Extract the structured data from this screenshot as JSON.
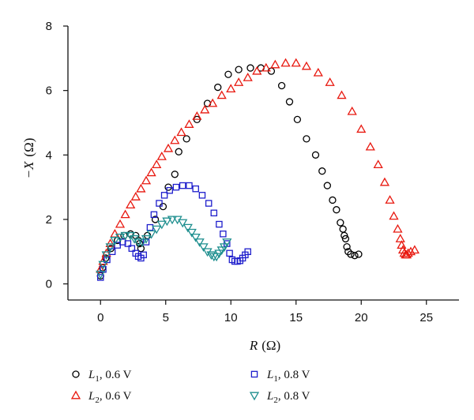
{
  "chart_data": {
    "type": "scatter",
    "title": "",
    "xlabel": {
      "symbol": "R",
      "unit": "(Ω)"
    },
    "ylabel": {
      "symbol": "−X",
      "unit": "(Ω)"
    },
    "xlim": [
      -2.5,
      27.5
    ],
    "ylim": [
      -0.5,
      8
    ],
    "xticks": [
      0,
      5,
      10,
      15,
      20,
      25
    ],
    "yticks": [
      0,
      2,
      4,
      6,
      8
    ],
    "grid": false,
    "legend_position": "bottom",
    "series": [
      {
        "name": "L1, 0.6 V",
        "name_main": "L",
        "name_sub": "1",
        "name_tail": ", 0.6 V",
        "marker": "circle",
        "color": "#000000",
        "x": [
          0.0,
          0.15,
          0.4,
          0.8,
          1.3,
          1.8,
          2.3,
          2.7,
          2.9,
          3.0,
          3.1,
          3.6,
          4.2,
          4.8,
          5.2,
          5.7,
          6.0,
          6.6,
          7.4,
          8.2,
          9.0,
          9.8,
          10.6,
          11.5,
          12.3,
          13.1,
          13.9,
          14.5,
          15.1,
          15.8,
          16.5,
          17.0,
          17.4,
          17.8,
          18.1,
          18.4,
          18.6,
          18.7,
          18.8,
          18.9,
          19.0,
          19.2,
          19.5,
          19.8
        ],
        "y": [
          0.25,
          0.5,
          0.8,
          1.1,
          1.35,
          1.5,
          1.55,
          1.5,
          1.35,
          1.25,
          1.1,
          1.5,
          2.0,
          2.4,
          3.0,
          3.4,
          4.1,
          4.5,
          5.1,
          5.6,
          6.1,
          6.5,
          6.65,
          6.7,
          6.7,
          6.6,
          6.15,
          5.65,
          5.1,
          4.5,
          4.0,
          3.5,
          3.05,
          2.6,
          2.3,
          1.9,
          1.7,
          1.5,
          1.4,
          1.15,
          1.0,
          0.92,
          0.88,
          0.92
        ]
      },
      {
        "name": "L2, 0.6 V",
        "name_main": "L",
        "name_sub": "2",
        "name_tail": ", 0.6 V",
        "marker": "triangle-up",
        "color": "#e8180f",
        "x": [
          0.0,
          0.2,
          0.45,
          0.75,
          1.1,
          1.5,
          1.9,
          2.3,
          2.7,
          3.1,
          3.5,
          3.9,
          4.3,
          4.7,
          5.2,
          5.7,
          6.2,
          6.8,
          7.4,
          8.0,
          8.6,
          9.3,
          10.0,
          10.6,
          11.3,
          12.0,
          12.7,
          13.4,
          14.2,
          15.0,
          15.8,
          16.7,
          17.6,
          18.5,
          19.3,
          20.0,
          20.7,
          21.3,
          21.8,
          22.2,
          22.5,
          22.8,
          23.0,
          23.1,
          23.2,
          23.3,
          23.4,
          23.5,
          23.6,
          23.8,
          24.1
        ],
        "y": [
          0.45,
          0.7,
          0.95,
          1.25,
          1.55,
          1.85,
          2.15,
          2.45,
          2.7,
          2.95,
          3.2,
          3.45,
          3.7,
          3.95,
          4.2,
          4.45,
          4.7,
          4.95,
          5.2,
          5.4,
          5.6,
          5.85,
          6.05,
          6.25,
          6.4,
          6.6,
          6.7,
          6.8,
          6.85,
          6.85,
          6.75,
          6.55,
          6.25,
          5.85,
          5.35,
          4.8,
          4.25,
          3.7,
          3.15,
          2.6,
          2.1,
          1.7,
          1.4,
          1.2,
          1.05,
          0.95,
          0.9,
          0.9,
          0.95,
          1.0,
          1.05
        ]
      },
      {
        "name": "L1, 0.8 V",
        "name_main": "L",
        "name_sub": "1",
        "name_tail": ", 0.8 V",
        "marker": "square",
        "color": "#1f1fcc",
        "x": [
          0.0,
          0.2,
          0.5,
          0.9,
          1.3,
          1.7,
          2.1,
          2.4,
          2.7,
          2.9,
          3.1,
          3.3,
          3.5,
          3.8,
          4.1,
          4.5,
          4.9,
          5.3,
          5.8,
          6.3,
          6.8,
          7.3,
          7.8,
          8.3,
          8.7,
          9.1,
          9.4,
          9.7,
          9.9,
          10.1,
          10.3,
          10.5,
          10.7,
          10.9,
          11.1,
          11.3
        ],
        "y": [
          0.2,
          0.45,
          0.75,
          1.0,
          1.2,
          1.3,
          1.25,
          1.1,
          0.95,
          0.85,
          0.8,
          0.9,
          1.3,
          1.75,
          2.15,
          2.5,
          2.75,
          2.9,
          3.0,
          3.05,
          3.05,
          2.95,
          2.75,
          2.5,
          2.2,
          1.85,
          1.55,
          1.25,
          0.95,
          0.75,
          0.7,
          0.7,
          0.72,
          0.8,
          0.9,
          1.0
        ]
      },
      {
        "name": "L2, 0.8 V",
        "name_main": "L",
        "name_sub": "2",
        "name_tail": ", 0.8 V",
        "marker": "triangle-down",
        "color": "#1f8f8f",
        "x": [
          0.0,
          0.2,
          0.45,
          0.75,
          1.1,
          1.5,
          1.9,
          2.3,
          2.6,
          2.9,
          3.2,
          3.5,
          3.9,
          4.3,
          4.7,
          5.1,
          5.5,
          5.9,
          6.3,
          6.7,
          7.0,
          7.3,
          7.6,
          7.9,
          8.2,
          8.5,
          8.7,
          8.9,
          9.1,
          9.3,
          9.5,
          9.7
        ],
        "y": [
          0.3,
          0.6,
          0.9,
          1.15,
          1.35,
          1.45,
          1.5,
          1.5,
          1.4,
          1.3,
          1.3,
          1.4,
          1.55,
          1.7,
          1.85,
          1.95,
          2.0,
          2.0,
          1.9,
          1.75,
          1.6,
          1.45,
          1.3,
          1.15,
          1.0,
          0.9,
          0.85,
          0.85,
          0.95,
          1.05,
          1.15,
          1.3
        ]
      }
    ]
  }
}
